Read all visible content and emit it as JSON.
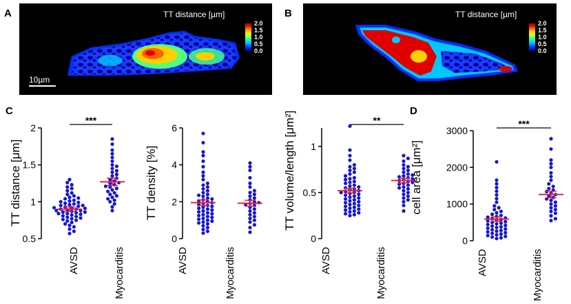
{
  "panels": {
    "A": {
      "label": "A",
      "map_title": "TT distance [µm]",
      "scale_bar": "10µm",
      "colorbar_ticks": [
        "2.0",
        "1.5",
        "1.0",
        "0.5",
        "0.0"
      ]
    },
    "B": {
      "label": "B",
      "map_title": "TT distance [µm]",
      "colorbar_ticks": [
        "2.0",
        "1.5",
        "1.0",
        "0.5",
        "0.0"
      ]
    },
    "C": {
      "label": "C"
    },
    "D": {
      "label": "D"
    }
  },
  "colors": {
    "dot": "#1515d8",
    "mean_line": "#e0283a",
    "image_bg": "#000000",
    "colormap": [
      "#00008f",
      "#0030ff",
      "#00c8ff",
      "#40ff90",
      "#d0ff20",
      "#ffd000",
      "#ff6000",
      "#e00000",
      "#b00000"
    ]
  },
  "chart_data": [
    {
      "id": "tt-distance",
      "type": "scatter",
      "ylabel": "TT distance [μm]",
      "categories": [
        "AVSD",
        "Myocarditis"
      ],
      "ylim": [
        0.5,
        2
      ],
      "yticks": [
        0.5,
        1,
        1.5,
        2
      ],
      "ytick_labels": [
        "0.5",
        "1",
        "1.5",
        "2"
      ],
      "significance": "***",
      "series": [
        {
          "name": "AVSD",
          "mean": 0.9,
          "sem": 0.03,
          "values": [
            1.3,
            1.26,
            1.23,
            1.2,
            1.18,
            1.15,
            1.12,
            1.1,
            1.08,
            1.06,
            1.05,
            1.04,
            1.02,
            1.01,
            1.0,
            0.99,
            0.98,
            0.97,
            0.96,
            0.95,
            0.95,
            0.94,
            0.93,
            0.92,
            0.92,
            0.91,
            0.9,
            0.9,
            0.89,
            0.88,
            0.88,
            0.87,
            0.86,
            0.86,
            0.85,
            0.84,
            0.84,
            0.83,
            0.82,
            0.81,
            0.8,
            0.79,
            0.78,
            0.77,
            0.76,
            0.75,
            0.74,
            0.72,
            0.7,
            0.68,
            0.66,
            0.63,
            0.6,
            0.57
          ]
        },
        {
          "name": "Myocarditis",
          "mean": 1.27,
          "sem": 0.05,
          "values": [
            1.85,
            1.78,
            1.7,
            1.65,
            1.6,
            1.55,
            1.5,
            1.48,
            1.45,
            1.42,
            1.4,
            1.37,
            1.35,
            1.32,
            1.3,
            1.28,
            1.26,
            1.25,
            1.23,
            1.21,
            1.2,
            1.18,
            1.16,
            1.14,
            1.12,
            1.1,
            1.08,
            1.06,
            1.04,
            1.02,
            1.0,
            0.97,
            0.93,
            0.88
          ]
        }
      ]
    },
    {
      "id": "tt-density",
      "type": "scatter",
      "ylabel": "TT density [%]",
      "categories": [
        "AVSD",
        "Myocarditis"
      ],
      "ylim": [
        0,
        6
      ],
      "yticks": [
        0,
        2,
        4,
        6
      ],
      "ytick_labels": [
        "0",
        "2",
        "4",
        "6"
      ],
      "significance": "",
      "series": [
        {
          "name": "AVSD",
          "mean": 1.95,
          "sem": 0.15,
          "values": [
            5.7,
            5.2,
            4.7,
            4.5,
            4.2,
            3.9,
            3.6,
            3.4,
            3.2,
            3.0,
            2.9,
            2.8,
            2.7,
            2.6,
            2.5,
            2.4,
            2.35,
            2.3,
            2.2,
            2.15,
            2.1,
            2.05,
            2.0,
            1.95,
            1.9,
            1.85,
            1.8,
            1.75,
            1.7,
            1.65,
            1.6,
            1.55,
            1.5,
            1.45,
            1.4,
            1.35,
            1.3,
            1.25,
            1.2,
            1.15,
            1.1,
            1.05,
            1.0,
            0.95,
            0.9,
            0.85,
            0.8,
            0.7,
            0.6,
            0.5,
            0.4,
            0.3
          ]
        },
        {
          "name": "Myocarditis",
          "mean": 1.92,
          "sem": 0.16,
          "values": [
            4.1,
            3.9,
            3.7,
            3.3,
            3.0,
            2.8,
            2.6,
            2.5,
            2.4,
            2.3,
            2.2,
            2.1,
            2.0,
            1.95,
            1.9,
            1.85,
            1.8,
            1.7,
            1.6,
            1.5,
            1.4,
            1.3,
            1.2,
            1.1,
            1.0,
            0.9,
            0.75,
            0.6,
            0.35
          ]
        }
      ]
    },
    {
      "id": "tt-volume-length",
      "type": "scatter",
      "ylabel": "TT volume/length [μm²]",
      "categories": [
        "AVSD",
        "Myocarditis"
      ],
      "ylim": [
        0,
        1.2
      ],
      "yticks": [
        0,
        0.5,
        1
      ],
      "ytick_labels": [
        "0",
        "0.5",
        "1"
      ],
      "significance": "**",
      "series": [
        {
          "name": "AVSD",
          "mean": 0.52,
          "sem": 0.025,
          "values": [
            1.22,
            0.96,
            0.9,
            0.85,
            0.8,
            0.78,
            0.76,
            0.74,
            0.72,
            0.7,
            0.68,
            0.66,
            0.65,
            0.64,
            0.62,
            0.61,
            0.6,
            0.58,
            0.57,
            0.56,
            0.55,
            0.54,
            0.53,
            0.52,
            0.51,
            0.5,
            0.5,
            0.49,
            0.48,
            0.47,
            0.46,
            0.45,
            0.44,
            0.43,
            0.42,
            0.41,
            0.4,
            0.39,
            0.38,
            0.37,
            0.36,
            0.35,
            0.34,
            0.33,
            0.32,
            0.31,
            0.3,
            0.29,
            0.28,
            0.27,
            0.26,
            0.25
          ]
        },
        {
          "name": "Myocarditis",
          "mean": 0.63,
          "sem": 0.025,
          "values": [
            0.9,
            0.87,
            0.84,
            0.8,
            0.78,
            0.76,
            0.74,
            0.72,
            0.7,
            0.69,
            0.68,
            0.67,
            0.66,
            0.65,
            0.64,
            0.63,
            0.62,
            0.61,
            0.6,
            0.59,
            0.58,
            0.56,
            0.55,
            0.54,
            0.52,
            0.5,
            0.48,
            0.46,
            0.44,
            0.42,
            0.4,
            0.36,
            0.3
          ]
        }
      ]
    },
    {
      "id": "cell-area",
      "type": "scatter",
      "ylabel": "cell area [μm²]",
      "categories": [
        "AVSD",
        "Myocarditis"
      ],
      "ylim": [
        0,
        3000
      ],
      "yticks": [
        0,
        1000,
        2000,
        3000
      ],
      "ytick_labels": [
        "0",
        "1000",
        "2000",
        "3000"
      ],
      "significance": "***",
      "series": [
        {
          "name": "AVSD",
          "mean": 590,
          "sem": 60,
          "values": [
            2150,
            1650,
            1550,
            1450,
            1350,
            1250,
            1150,
            1050,
            950,
            900,
            850,
            800,
            760,
            720,
            690,
            660,
            640,
            620,
            600,
            580,
            560,
            540,
            520,
            500,
            480,
            460,
            440,
            420,
            400,
            380,
            360,
            340,
            320,
            300,
            280,
            260,
            240,
            220,
            200,
            180,
            160,
            140,
            120,
            100,
            80,
            60
          ]
        },
        {
          "name": "Myocarditis",
          "mean": 1260,
          "sem": 90,
          "values": [
            2780,
            2500,
            2200,
            2100,
            2000,
            1850,
            1750,
            1650,
            1550,
            1480,
            1420,
            1380,
            1340,
            1300,
            1260,
            1220,
            1180,
            1140,
            1100,
            1050,
            1000,
            950,
            900,
            850,
            800,
            750,
            680,
            600,
            550
          ]
        }
      ]
    }
  ]
}
